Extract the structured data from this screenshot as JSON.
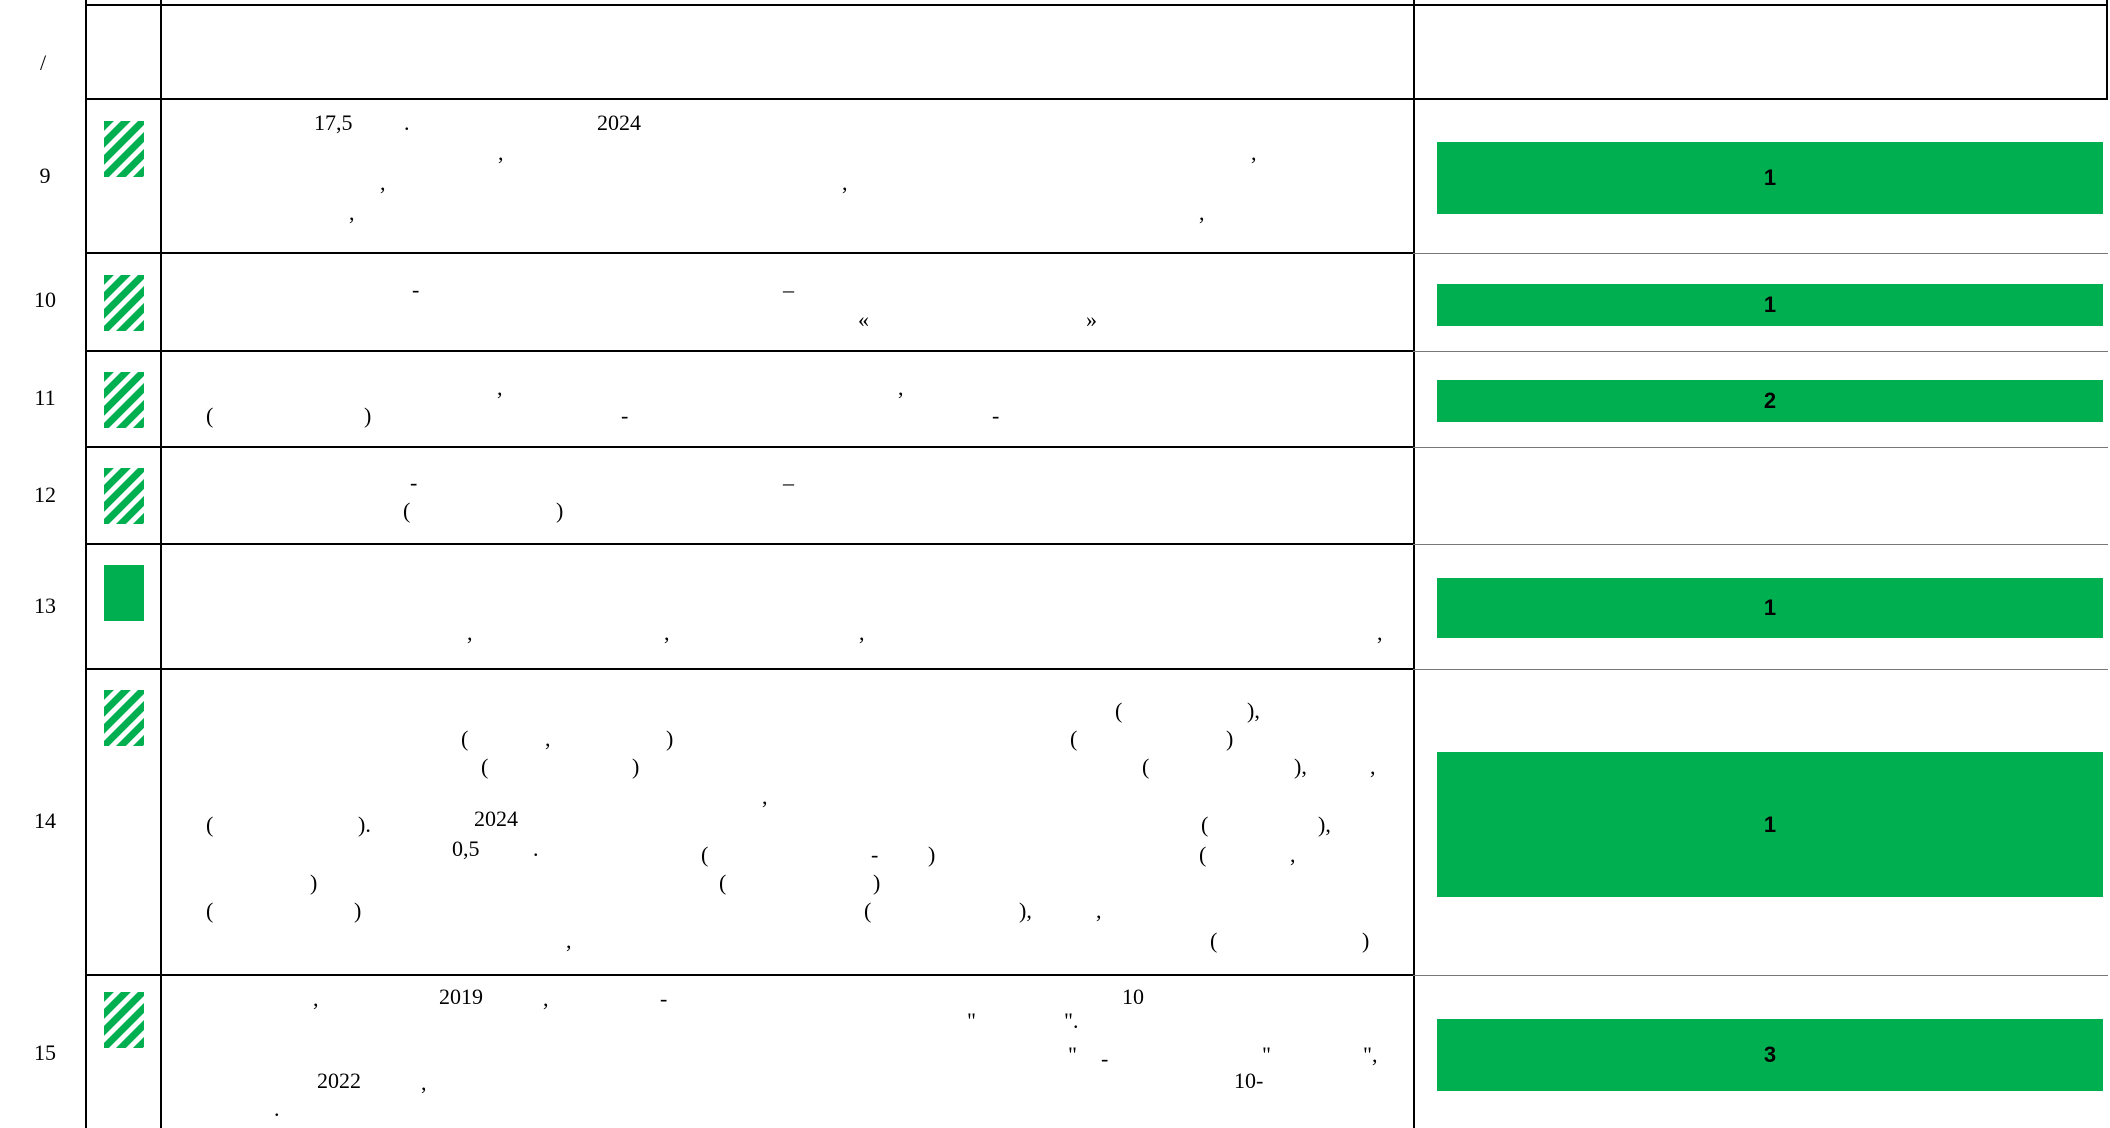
{
  "header": {
    "col1": "/"
  },
  "colors": {
    "accent": "#00b050"
  },
  "rows": [
    {
      "num": "9",
      "icon": "hatched-icon",
      "bar": "1",
      "fragments": [
        "17,5",
        ".",
        "2024",
        ",",
        ",",
        ",",
        ",",
        ",",
        ","
      ]
    },
    {
      "num": "10",
      "icon": "hatched-icon",
      "bar": "1",
      "fragments": [
        "-",
        "–",
        "«",
        "»"
      ]
    },
    {
      "num": "11",
      "icon": "hatched-icon",
      "bar": "2",
      "fragments": [
        ",",
        ",",
        "(",
        ")",
        "-",
        "-"
      ]
    },
    {
      "num": "12",
      "icon": "hatched-icon",
      "bar": "",
      "fragments": [
        "-",
        "–",
        "(",
        ")"
      ]
    },
    {
      "num": "13",
      "icon": "solid-icon",
      "bar": "1",
      "fragments": [
        ",",
        ",",
        ",",
        ","
      ]
    },
    {
      "num": "14",
      "icon": "hatched-icon",
      "bar": "1",
      "fragments": [
        "(",
        "),",
        "(",
        ",",
        ")",
        "(",
        ")",
        "(",
        ")",
        "(",
        "),",
        ",",
        ",",
        "(",
        ").",
        "2024",
        "(",
        "),",
        "0,5",
        ".",
        "(",
        "-",
        ")",
        "(",
        ",",
        ")",
        "(",
        ")",
        "(",
        ")",
        "(",
        "),",
        ",",
        ",",
        "(",
        ")"
      ]
    },
    {
      "num": "15",
      "icon": "hatched-icon",
      "bar": "3",
      "fragments": [
        ",",
        "2019",
        ",",
        "-",
        "10",
        "\"",
        "\".",
        "\"",
        "-",
        "\"",
        "\",",
        "2022",
        ",",
        "10-",
        "."
      ]
    }
  ]
}
